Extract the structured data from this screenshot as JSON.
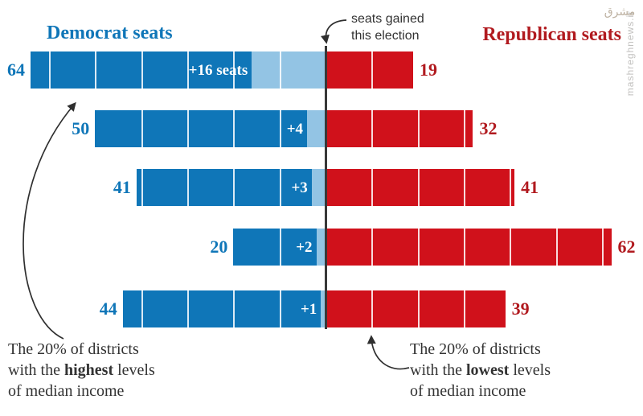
{
  "headers": {
    "left": "Democrat seats",
    "right": "Republican seats"
  },
  "annotation_top": {
    "line1": "seats gained",
    "line2": "this election"
  },
  "annotation_bottom_left": {
    "line1": "The 20% of districts",
    "line2_pre": "with the ",
    "line2_bold": "highest",
    "line2_post": " levels",
    "line3": "of median income"
  },
  "annotation_bottom_right": {
    "line1": "The 20% of districts",
    "line2_pre": "with the ",
    "line2_bold": "lowest",
    "line2_post": " levels",
    "line3": "of median income"
  },
  "watermark": {
    "site": "mashreghnews.ir",
    "logo": "مشرق"
  },
  "colors": {
    "dem-blue": "#0f76b8",
    "dem-light": "#93c4e4",
    "rep-red": "#d0111b",
    "rep-dark": "#b11a1f",
    "axis": "#383838",
    "ink": "#333333",
    "wm": "#c2c1bf",
    "wm-logo": "#b7aa99"
  },
  "chart_data": {
    "type": "bar",
    "variant": "diverging-horizontal",
    "unit": "House seats",
    "title_left": "Democrat seats",
    "title_right": "Republican seats",
    "gridline_interval_seats": 10,
    "legend": "light blue segment = seats gained this election",
    "rows_note": "rows ordered from highest to lowest median-income quintile of districts",
    "rows": [
      {
        "democrat_total": 64,
        "democrat_gained": 16,
        "gained_label": "+16 seats",
        "republican_total": 19
      },
      {
        "democrat_total": 50,
        "democrat_gained": 4,
        "gained_label": "+4",
        "republican_total": 32
      },
      {
        "democrat_total": 41,
        "democrat_gained": 3,
        "gained_label": "+3",
        "republican_total": 41
      },
      {
        "democrat_total": 20,
        "democrat_gained": 2,
        "gained_label": "+2",
        "republican_total": 62
      },
      {
        "democrat_total": 44,
        "democrat_gained": 1,
        "gained_label": "+1",
        "republican_total": 39
      }
    ]
  }
}
